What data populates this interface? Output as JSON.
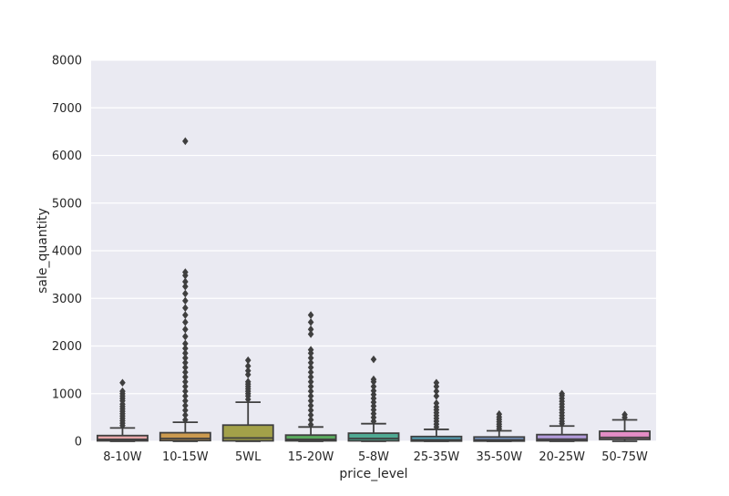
{
  "chart_data": {
    "type": "box",
    "xlabel": "price_level",
    "ylabel": "sale_quantity",
    "ylim": [
      0,
      8000
    ],
    "yticks": [
      0,
      1000,
      2000,
      3000,
      4000,
      5000,
      6000,
      7000,
      8000
    ],
    "grid": true,
    "background": "#EAEAF2",
    "categories": [
      "8-10W",
      "10-15W",
      "5WL",
      "15-20W",
      "5-8W",
      "25-35W",
      "35-50W",
      "20-25W",
      "50-75W"
    ],
    "boxes": [
      {
        "category": "8-10W",
        "color": "#E8A6A9",
        "q1": 10,
        "median": 40,
        "q3": 120,
        "whisker_low": 0,
        "whisker_high": 280,
        "outliers": [
          330,
          380,
          430,
          480,
          530,
          580,
          630,
          680,
          730,
          780,
          850,
          900,
          950,
          1000,
          1050,
          1230
        ]
      },
      {
        "category": "10-15W",
        "color": "#CC9A4F",
        "q1": 15,
        "median": 60,
        "q3": 180,
        "whisker_low": 0,
        "whisker_high": 400,
        "outliers": [
          450,
          550,
          650,
          750,
          850,
          950,
          1050,
          1150,
          1250,
          1350,
          1450,
          1550,
          1650,
          1750,
          1850,
          1950,
          2050,
          2200,
          2350,
          2500,
          2650,
          2800,
          2950,
          3100,
          3250,
          3350,
          3480,
          3550,
          6300
        ]
      },
      {
        "category": "5WL",
        "color": "#A3A149",
        "q1": 10,
        "median": 70,
        "q3": 340,
        "whisker_low": 0,
        "whisker_high": 820,
        "outliers": [
          880,
          950,
          1000,
          1050,
          1100,
          1150,
          1200,
          1250,
          1400,
          1480,
          1580,
          1700
        ]
      },
      {
        "category": "15-20W",
        "color": "#5AAA5E",
        "q1": 10,
        "median": 40,
        "q3": 130,
        "whisker_low": 0,
        "whisker_high": 300,
        "outliers": [
          350,
          450,
          550,
          650,
          750,
          850,
          950,
          1050,
          1150,
          1250,
          1350,
          1450,
          1550,
          1650,
          1750,
          1850,
          1920,
          2250,
          2350,
          2500,
          2650
        ]
      },
      {
        "category": "5-8W",
        "color": "#4FAA93",
        "q1": 10,
        "median": 60,
        "q3": 170,
        "whisker_low": 0,
        "whisker_high": 370,
        "outliers": [
          420,
          500,
          580,
          660,
          740,
          820,
          900,
          980,
          1060,
          1150,
          1250,
          1300,
          1720
        ]
      },
      {
        "category": "25-35W",
        "color": "#55A5BA",
        "q1": 5,
        "median": 30,
        "q3": 100,
        "whisker_low": 0,
        "whisker_high": 250,
        "outliers": [
          300,
          360,
          420,
          480,
          540,
          600,
          660,
          720,
          800,
          950,
          1050,
          1150,
          1230
        ]
      },
      {
        "category": "35-50W",
        "color": "#7D9FD1",
        "q1": 5,
        "median": 30,
        "q3": 90,
        "whisker_low": 0,
        "whisker_high": 220,
        "outliers": [
          260,
          310,
          360,
          410,
          460,
          510,
          570
        ]
      },
      {
        "category": "20-25W",
        "color": "#B39BDB",
        "q1": 10,
        "median": 45,
        "q3": 140,
        "whisker_low": 0,
        "whisker_high": 320,
        "outliers": [
          370,
          420,
          480,
          540,
          600,
          660,
          720,
          780,
          840,
          900,
          960,
          1000
        ]
      },
      {
        "category": "50-75W",
        "color": "#E48DC6",
        "q1": 40,
        "median": 80,
        "q3": 210,
        "whisker_low": 0,
        "whisker_high": 450,
        "outliers": [
          500,
          560
        ]
      }
    ]
  }
}
